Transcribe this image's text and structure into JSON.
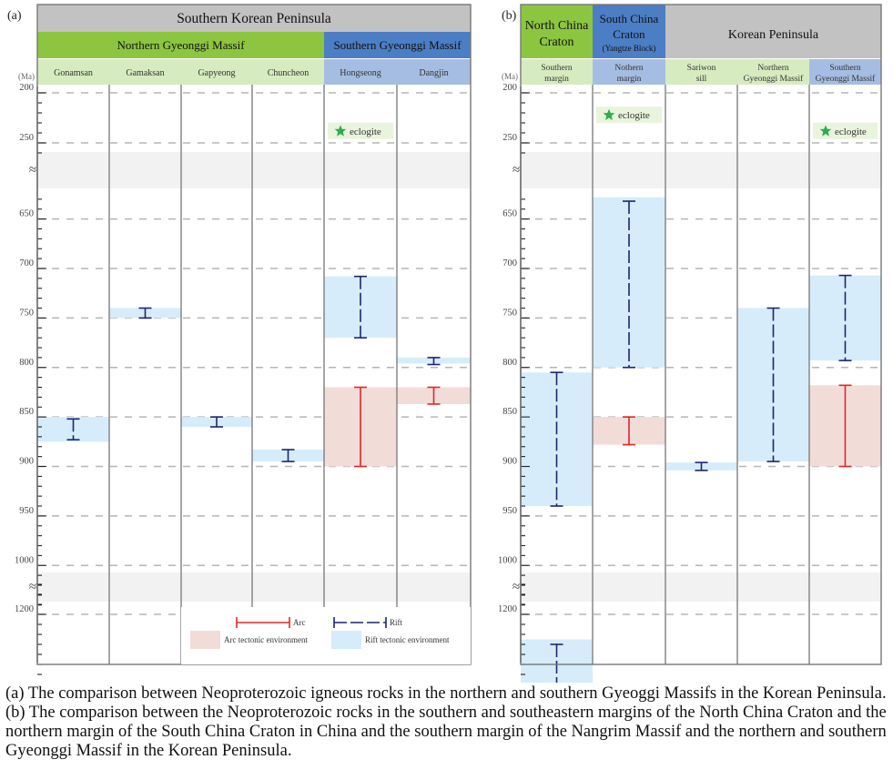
{
  "caption": "(a) The comparison between Neoproterozoic igneous rocks in the northern and southern Gyeoggi Massifs in the Korean Peninsula. (b) The comparison between the Neoproterozoic rocks in the southern and southeastern margins of the North China Craton and the northern margin of the South China Craton in China and the southern margin of the Nangrim Massif and the northern and southern Gyeonggi Massif in the Korean Peninsula.",
  "colors": {
    "green_header": "#8cc53f",
    "blue_header": "#4b7ec4",
    "gray_header": "#c2c2c2",
    "light_green": "#d7ebc0",
    "light_blue": "#a6bde3",
    "rift_env": "#d6ecfa",
    "arc_env": "#f2dcd8",
    "arc_bar": "#e02828",
    "rift_bar": "#1c2670",
    "gap_band": "#f2f2f2",
    "star": "#27b04f"
  },
  "chart_data": [
    {
      "type": "range-timeline",
      "panel_label": "(a)",
      "title": "Southern Korean Peninsula",
      "groups": [
        {
          "name": "Northern Gyeonggi Massif",
          "columns": 4,
          "color": "green"
        },
        {
          "name": "Southern Gyeonggi Massif",
          "columns": 2,
          "color": "blue"
        }
      ],
      "columns": [
        "Gonamsan",
        "Gamaksan",
        "Gapyeong",
        "Chuncheon",
        "Hongseong",
        "Dangjin"
      ],
      "column_colors": [
        "light_green",
        "light_green",
        "light_green",
        "light_green",
        "light_blue",
        "light_blue"
      ],
      "y_unit": "(Ma)",
      "y_tick_labels": [
        "200",
        "250",
        "650",
        "700",
        "750",
        "800",
        "850",
        "900",
        "950",
        "1000",
        "1200"
      ],
      "axis_break_symbol": "≈",
      "eclogite_label": "eclogite",
      "eclogites": [
        {
          "col": 4,
          "age": 238
        }
      ],
      "environments": [
        {
          "col": 0,
          "type": "rift",
          "from": 850,
          "to": 875
        },
        {
          "col": 1,
          "type": "rift",
          "from": 740,
          "to": 750
        },
        {
          "col": 2,
          "type": "rift",
          "from": 850,
          "to": 860
        },
        {
          "col": 3,
          "type": "rift",
          "from": 883,
          "to": 895
        },
        {
          "col": 4,
          "type": "rift",
          "from": 708,
          "to": 770
        },
        {
          "col": 4,
          "type": "arc",
          "from": 820,
          "to": 900
        },
        {
          "col": 5,
          "type": "rift",
          "from": 790,
          "to": 796
        },
        {
          "col": 5,
          "type": "arc",
          "from": 820,
          "to": 837
        }
      ],
      "ranges": [
        {
          "col": 0,
          "type": "rift",
          "min": 852,
          "max": 873
        },
        {
          "col": 1,
          "type": "rift",
          "min": 740,
          "max": 750
        },
        {
          "col": 2,
          "type": "rift",
          "min": 850,
          "max": 860
        },
        {
          "col": 3,
          "type": "rift",
          "min": 883,
          "max": 895
        },
        {
          "col": 4,
          "type": "rift",
          "min": 708,
          "max": 770
        },
        {
          "col": 4,
          "type": "arc",
          "min": 820,
          "max": 900
        },
        {
          "col": 5,
          "type": "rift",
          "min": 790,
          "max": 797
        },
        {
          "col": 5,
          "type": "arc",
          "min": 820,
          "max": 837
        }
      ],
      "legend": {
        "arc_label": "Arc",
        "rift_label": "Rift",
        "arc_env_label": "Arc tectonic environment",
        "rift_env_label": "Rift tectonic environment"
      }
    },
    {
      "type": "range-timeline",
      "panel_label": "(b)",
      "title": "Korean Peninsula",
      "groups": [
        {
          "name": "North China Craton",
          "sub": "",
          "columns": 1,
          "color": "green"
        },
        {
          "name": "South China Craton",
          "sub": "(Yangtze Block)",
          "columns": 1,
          "color": "blue"
        },
        {
          "name": "Korean Peninsula",
          "sub": "",
          "columns": 3,
          "color": "gray"
        }
      ],
      "columns": [
        "Southern margin",
        "Nothern margin",
        "Sariwon sill",
        "Northern Gyeonggi Massif",
        "Southern Gyeonggi Massif"
      ],
      "column_colors": [
        "light_green",
        "light_blue",
        "light_green",
        "light_green",
        "light_blue"
      ],
      "y_unit": "(Ma)",
      "y_tick_labels": [
        "200",
        "250",
        "650",
        "700",
        "750",
        "800",
        "850",
        "900",
        "950",
        "1000",
        "1200"
      ],
      "axis_break_symbol": "≈",
      "eclogite_label": "eclogite",
      "eclogites": [
        {
          "col": 1,
          "age": 222
        },
        {
          "col": 4,
          "age": 238
        }
      ],
      "environments": [
        {
          "col": 0,
          "type": "rift",
          "from": 805,
          "to": 940
        },
        {
          "col": 0,
          "type": "rift",
          "from": 1225,
          "to": 1300
        },
        {
          "col": 1,
          "type": "rift",
          "from": 628,
          "to": 800
        },
        {
          "col": 1,
          "type": "arc",
          "from": 850,
          "to": 878
        },
        {
          "col": 2,
          "type": "rift",
          "from": 896,
          "to": 904
        },
        {
          "col": 3,
          "type": "rift",
          "from": 740,
          "to": 895
        },
        {
          "col": 4,
          "type": "rift",
          "from": 707,
          "to": 793
        },
        {
          "col": 4,
          "type": "arc",
          "from": 818,
          "to": 900
        }
      ],
      "ranges": [
        {
          "col": 0,
          "type": "rift",
          "min": 805,
          "max": 940
        },
        {
          "col": 0,
          "type": "rift",
          "min": 1230,
          "max": 1300
        },
        {
          "col": 1,
          "type": "rift",
          "min": 632,
          "max": 800
        },
        {
          "col": 1,
          "type": "arc",
          "min": 850,
          "max": 878
        },
        {
          "col": 2,
          "type": "rift",
          "min": 896,
          "max": 904
        },
        {
          "col": 3,
          "type": "rift",
          "min": 740,
          "max": 895
        },
        {
          "col": 4,
          "type": "rift",
          "min": 707,
          "max": 793
        },
        {
          "col": 4,
          "type": "arc",
          "min": 818,
          "max": 900
        }
      ]
    }
  ]
}
